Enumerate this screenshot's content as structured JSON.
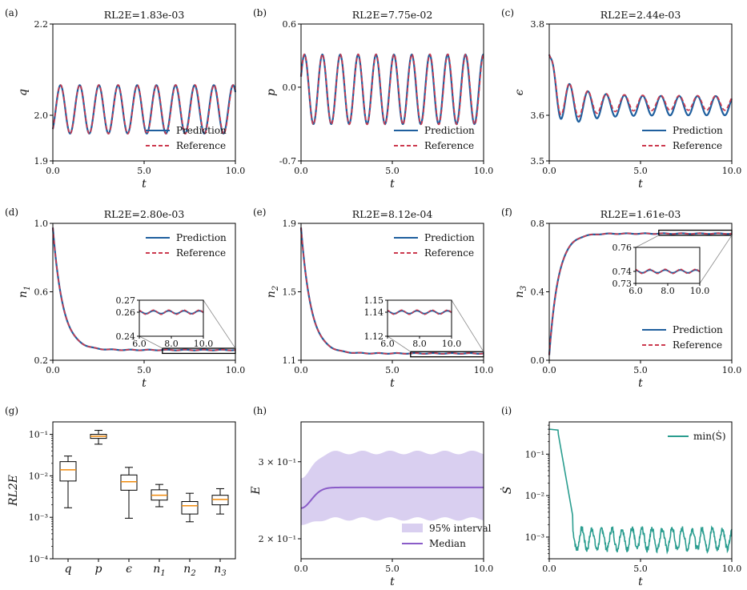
{
  "colors": {
    "prediction": "#1f5f9e",
    "reference": "#cc3a4f",
    "median": "#8a5cc8",
    "band": "#d9cff0",
    "s_line": "#2a9d8f",
    "box_median": "#f08a0b"
  },
  "legend": {
    "prediction": "Prediction",
    "reference": "Reference",
    "interval": "95% interval",
    "median": "Median",
    "s_min": "min(Ṡ)"
  },
  "chart_data": [
    {
      "id": "a",
      "panel_label": "(a)",
      "type": "line",
      "title": "RL2E=1.83e-03",
      "xlabel": "t",
      "ylabel": "q",
      "xlim": [
        0,
        10
      ],
      "ylim": [
        1.9,
        2.2
      ],
      "xticks": [
        "0.0",
        "5.0",
        "10.0"
      ],
      "yticks": [
        "1.9",
        "2.0",
        "2.2"
      ],
      "signal": {
        "mean": 2.013,
        "amplitude": 0.053,
        "period": 1.05,
        "start": 1.97
      },
      "series": [
        {
          "name": "Prediction"
        },
        {
          "name": "Reference"
        }
      ],
      "legend_position": "lower-right"
    },
    {
      "id": "b",
      "panel_label": "(b)",
      "type": "line",
      "title": "RL2E=7.75e-02",
      "xlabel": "t",
      "ylabel": "p",
      "xlim": [
        0,
        10
      ],
      "ylim": [
        -0.7,
        0.6
      ],
      "xticks": [
        "0.0",
        "5.0",
        "10.0"
      ],
      "yticks": [
        "-0.7",
        "0.0",
        "0.6"
      ],
      "signal": {
        "mean": -0.02,
        "amplitude": 0.33,
        "period": 0.98,
        "start": 0.1
      },
      "series": [
        {
          "name": "Prediction"
        },
        {
          "name": "Reference"
        }
      ],
      "legend_position": "lower-right"
    },
    {
      "id": "c",
      "panel_label": "(c)",
      "type": "line",
      "title": "RL2E=2.44e-03",
      "xlabel": "t",
      "ylabel": "ϵ",
      "xlim": [
        0,
        10
      ],
      "ylim": [
        3.5,
        3.8
      ],
      "xticks": [
        "0.0",
        "5.0",
        "10.0"
      ],
      "yticks": [
        "3.5",
        "3.6",
        "3.8"
      ],
      "signal": {
        "prediction_mean": 3.621,
        "reference_mean": 3.627,
        "prediction_amplitude": 0.021,
        "reference_amplitude": 0.016,
        "initial": 3.733,
        "trough": 3.578,
        "period": 1.0
      },
      "series": [
        {
          "name": "Prediction"
        },
        {
          "name": "Reference"
        }
      ],
      "legend_position": "lower-right"
    },
    {
      "id": "d",
      "panel_label": "(d)",
      "type": "line",
      "title": "RL2E=2.80e-03",
      "xlabel": "t",
      "ylabel": "n1",
      "ylabel_main": "n",
      "ylabel_sub": "1",
      "xlim": [
        0,
        10
      ],
      "ylim": [
        0.2,
        1.0
      ],
      "xticks": [
        "0.0",
        "5.0",
        "10.0"
      ],
      "yticks": [
        "0.2",
        "0.6",
        "1.0"
      ],
      "signal": {
        "start": 0.975,
        "final": 0.26,
        "tau": 0.55
      },
      "inset": {
        "xlim": [
          6.0,
          10.0
        ],
        "ylim": [
          0.24,
          0.27
        ],
        "xticks": [
          "6.0",
          "8.0",
          "10.0"
        ],
        "yticks": [
          "0.24",
          "0.26",
          "0.27"
        ],
        "amplitude": 0.002
      },
      "series": [
        {
          "name": "Prediction"
        },
        {
          "name": "Reference"
        }
      ],
      "legend_position": "upper-right"
    },
    {
      "id": "e",
      "panel_label": "(e)",
      "type": "line",
      "title": "RL2E=8.12e-04",
      "xlabel": "t",
      "ylabel": "n2",
      "ylabel_main": "n",
      "ylabel_sub": "2",
      "xlim": [
        0,
        10
      ],
      "ylim": [
        1.1,
        1.9
      ],
      "xticks": [
        "0.0",
        "5.0",
        "10.0"
      ],
      "yticks": [
        "1.1",
        "1.5",
        "1.9"
      ],
      "signal": {
        "start": 1.875,
        "final": 1.14,
        "tau": 0.55
      },
      "inset": {
        "xlim": [
          6.0,
          10.0
        ],
        "ylim": [
          1.12,
          1.15
        ],
        "xticks": [
          "6.0",
          "8.0",
          "10.0"
        ],
        "yticks": [
          "1.12",
          "1.14",
          "1.15"
        ],
        "amplitude": 0.002
      },
      "series": [
        {
          "name": "Prediction"
        },
        {
          "name": "Reference"
        }
      ],
      "legend_position": "upper-right"
    },
    {
      "id": "f",
      "panel_label": "(f)",
      "type": "line",
      "title": "RL2E=1.61e-03",
      "xlabel": "t",
      "ylabel": "n3",
      "ylabel_main": "n",
      "ylabel_sub": "3",
      "xlim": [
        0,
        10
      ],
      "ylim": [
        0.0,
        0.8
      ],
      "xticks": [
        "0.0",
        "5.0",
        "10.0"
      ],
      "yticks": [
        "0.0",
        "0.4",
        "0.8"
      ],
      "signal": {
        "start": 0.03,
        "final": 0.74,
        "tau": 0.5
      },
      "inset": {
        "xlim": [
          6.0,
          10.0
        ],
        "ylim": [
          0.73,
          0.76
        ],
        "xticks": [
          "6.0",
          "8.0",
          "10.0"
        ],
        "yticks": [
          "0.73",
          "0.74",
          "0.76"
        ],
        "amplitude": 0.002
      },
      "series": [
        {
          "name": "Prediction"
        },
        {
          "name": "Reference"
        }
      ],
      "legend_position": "lower-right"
    },
    {
      "id": "g",
      "panel_label": "(g)",
      "type": "box",
      "title": "",
      "xlabel": "",
      "ylabel": "RL2E",
      "yscale": "log",
      "ylim": [
        0.0001,
        0.2
      ],
      "yticks": [
        "10⁻⁴",
        "10⁻³",
        "10⁻²",
        "10⁻¹"
      ],
      "categories": [
        "q",
        "p",
        "ϵ",
        "n1",
        "n2",
        "n3"
      ],
      "category_main": [
        "q",
        "p",
        "ϵ",
        "n",
        "n",
        "n"
      ],
      "category_sub": [
        "",
        "",
        "",
        "1",
        "2",
        "3"
      ],
      "boxes": [
        {
          "whislo": 0.0017,
          "q1": 0.0075,
          "med": 0.014,
          "q3": 0.022,
          "whishi": 0.03
        },
        {
          "whislo": 0.058,
          "q1": 0.08,
          "med": 0.09,
          "q3": 0.1,
          "whishi": 0.125
        },
        {
          "whislo": 0.00095,
          "q1": 0.0045,
          "med": 0.0072,
          "q3": 0.0105,
          "whishi": 0.016
        },
        {
          "whislo": 0.0018,
          "q1": 0.0026,
          "med": 0.0034,
          "q3": 0.0046,
          "whishi": 0.0062
        },
        {
          "whislo": 0.00078,
          "q1": 0.0012,
          "med": 0.0019,
          "q3": 0.0024,
          "whishi": 0.0038
        },
        {
          "whislo": 0.0012,
          "q1": 0.002,
          "med": 0.0027,
          "q3": 0.0034,
          "whishi": 0.0049
        }
      ]
    },
    {
      "id": "h",
      "panel_label": "(h)",
      "type": "area",
      "title": "",
      "xlabel": "t",
      "ylabel": "E",
      "yscale": "log",
      "xlim": [
        0,
        10
      ],
      "ylim": [
        0.18,
        0.37
      ],
      "xticks": [
        "0.0",
        "5.0",
        "10.0"
      ],
      "yticks": [
        {
          "value": 0.2,
          "label": "2 × 10⁻¹"
        },
        {
          "value": 0.3,
          "label": "3 × 10⁻¹"
        }
      ],
      "median": {
        "start": 0.235,
        "final": 0.262
      },
      "interval_95": {
        "lower_start": 0.215,
        "lower_final": 0.222,
        "upper_start": 0.275,
        "upper_final": 0.315
      },
      "series": [
        {
          "name": "95% interval"
        },
        {
          "name": "Median"
        }
      ],
      "legend_position": "lower-right"
    },
    {
      "id": "i",
      "panel_label": "(i)",
      "type": "line",
      "title": "",
      "xlabel": "t",
      "ylabel": "Ṡ",
      "yscale": "log",
      "xlim": [
        0,
        10
      ],
      "ylim": [
        0.0003,
        0.6
      ],
      "xticks": [
        "0.0",
        "5.0",
        "10.0"
      ],
      "yticks": [
        "10⁻³",
        "10⁻²",
        "10⁻¹"
      ],
      "signal": {
        "initial": 0.4,
        "final_min": 0.0005,
        "final_max": 0.0016
      },
      "series": [
        {
          "name": "min(Ṡ)"
        }
      ],
      "legend_position": "upper-right"
    }
  ]
}
